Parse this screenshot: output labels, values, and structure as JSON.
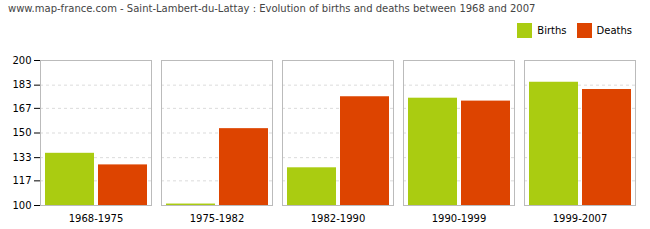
{
  "chart_data": {
    "type": "bar",
    "title": "www.map-france.com - Saint-Lambert-du-Lattay : Evolution of births and deaths between 1968 and 2007",
    "categories": [
      "1968-1975",
      "1975-1982",
      "1982-1990",
      "1990-1999",
      "1999-2007"
    ],
    "series": [
      {
        "name": "Births",
        "color": "#aacc11",
        "values": [
          136,
          101,
          126,
          174,
          185
        ]
      },
      {
        "name": "Deaths",
        "color": "#dd4400",
        "values": [
          128,
          153,
          175,
          172,
          180
        ]
      }
    ],
    "ylim": [
      100,
      200
    ],
    "yticks": [
      100,
      117,
      133,
      150,
      167,
      183,
      200
    ],
    "grid": true,
    "legend": "upper right"
  }
}
